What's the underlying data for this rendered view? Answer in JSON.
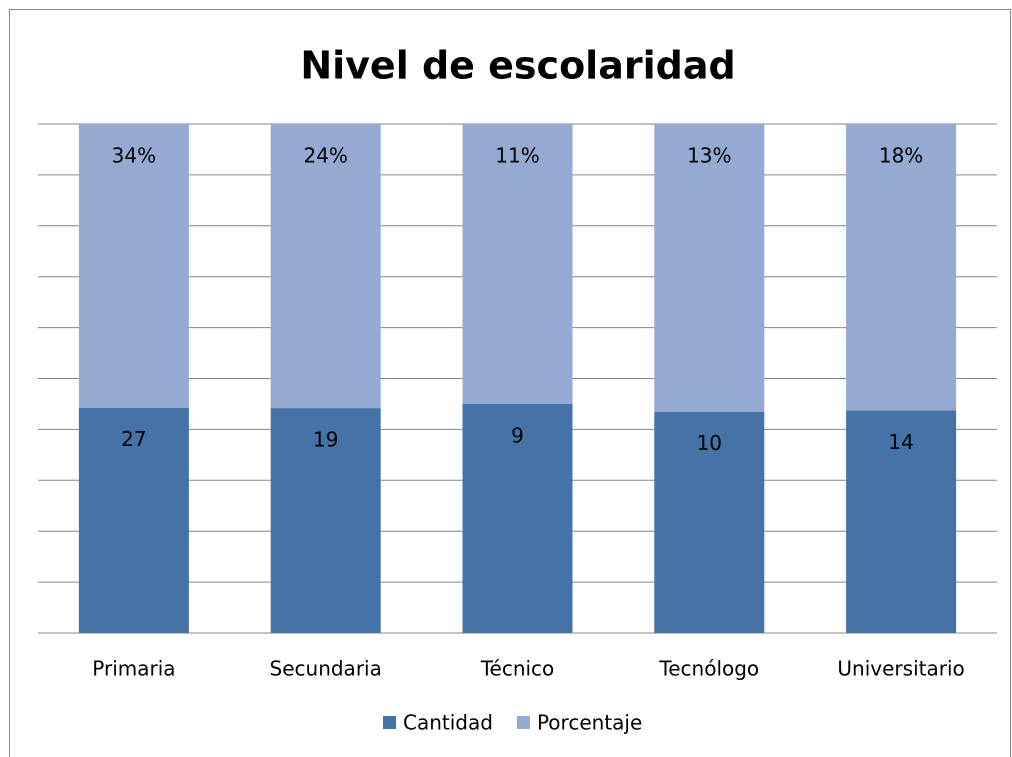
{
  "chart_data": {
    "type": "bar",
    "stacking": "percent",
    "title": "Nivel de escolaridad",
    "categories": [
      "Primaria",
      "Secundaria",
      "Técnico",
      "Tecnólogo",
      "Universitario"
    ],
    "series": [
      {
        "name": "Cantidad",
        "color": "#4573a7",
        "values": [
          27,
          19,
          9,
          10,
          14
        ]
      },
      {
        "name": "Porcentaje",
        "color": "#95aad3",
        "values": [
          34,
          24,
          11,
          13,
          18
        ],
        "value_labels": [
          "34%",
          "24%",
          "11%",
          "13%",
          "18%"
        ]
      }
    ],
    "ylim": [
      0,
      100
    ],
    "yticks": [
      0,
      10,
      20,
      30,
      40,
      50,
      60,
      70,
      80,
      90,
      100
    ],
    "ytick_labels": false,
    "grid": true,
    "legend": "bottom"
  }
}
